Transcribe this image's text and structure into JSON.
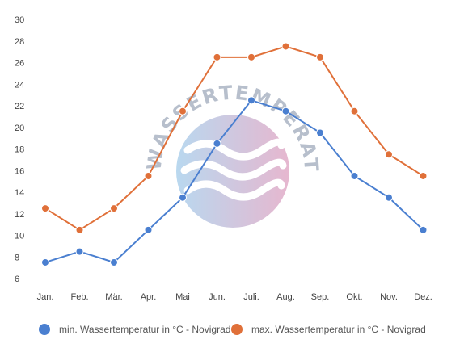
{
  "chart_data": {
    "type": "line",
    "categories": [
      "Jan.",
      "Feb.",
      "Mär.",
      "Apr.",
      "Mai",
      "Jun.",
      "Juli.",
      "Aug.",
      "Sep.",
      "Okt.",
      "Nov.",
      "Dez."
    ],
    "series": [
      {
        "name": "min. Wassertemperatur in °C - Novigrad",
        "color": "#4a7fd0",
        "values": [
          7.5,
          8.5,
          7.5,
          10.5,
          13.5,
          18.5,
          22.5,
          21.5,
          19.5,
          15.5,
          13.5,
          10.5
        ]
      },
      {
        "name": "max. Wassertemperatur in °C - Novigrad",
        "color": "#e07039",
        "values": [
          12.5,
          10.5,
          12.5,
          15.5,
          21.5,
          26.5,
          26.5,
          27.5,
          26.5,
          21.5,
          17.5,
          15.5
        ]
      }
    ],
    "ylim": [
      6,
      30
    ],
    "yticks": [
      6,
      8,
      10,
      12,
      14,
      16,
      18,
      20,
      22,
      24,
      26,
      28,
      30
    ],
    "grid": false,
    "legend": "bottom"
  },
  "watermark": {
    "text": "WASSERTEMPERATUR.ORG"
  }
}
